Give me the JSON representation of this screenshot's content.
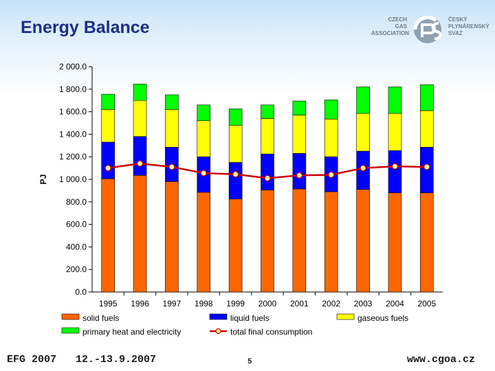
{
  "header": {
    "title": "Energy Balance"
  },
  "logo": {
    "left_text": [
      "CZECH",
      "GAS",
      "ASSOCIATION"
    ],
    "right_text": [
      "ČESKÝ",
      "PLYNÁRENSKÝ",
      "SVAZ"
    ],
    "icon": "cgoa-logo-mark"
  },
  "footer": {
    "event": "EFG 2007",
    "date": "12.-13.9.2007",
    "page": "5",
    "url": "www.cgoa.cz"
  },
  "colors": {
    "solid": "#ff6600",
    "liquid": "#0000ff",
    "gaseous": "#ffff00",
    "primary": "#00ff00",
    "line": "#cc0000",
    "marker_fill": "#ffff99"
  },
  "chart_data": {
    "type": "bar",
    "stacked": true,
    "categories": [
      "1995",
      "1996",
      "1997",
      "1998",
      "1999",
      "2000",
      "2001",
      "2002",
      "2003",
      "2004",
      "2005"
    ],
    "ylabel": "PJ",
    "xlabel": "",
    "ylim": [
      0,
      2000
    ],
    "yticks": [
      "0.0",
      "200.0",
      "400.0",
      "600.0",
      "800.0",
      "1 000.0",
      "1 200.0",
      "1 400.0",
      "1 600.0",
      "1 800.0",
      "2 000.0"
    ],
    "ytick_values": [
      0,
      200,
      400,
      600,
      800,
      1000,
      1200,
      1400,
      1600,
      1800,
      2000
    ],
    "grid": false,
    "legend_position": "bottom",
    "series": [
      {
        "name": "solid fuels",
        "kind": "bar",
        "values": [
          1005,
          1035,
          980,
          885,
          825,
          905,
          915,
          890,
          910,
          880,
          880
        ]
      },
      {
        "name": "liquid fuels",
        "kind": "bar",
        "values": [
          325,
          345,
          305,
          315,
          325,
          320,
          315,
          310,
          340,
          375,
          405
        ]
      },
      {
        "name": "gaseous fuels",
        "kind": "bar",
        "values": [
          290,
          320,
          335,
          320,
          330,
          315,
          340,
          335,
          335,
          330,
          325
        ]
      },
      {
        "name": "primary heat and electricity",
        "kind": "bar",
        "values": [
          135,
          145,
          130,
          140,
          145,
          120,
          125,
          170,
          235,
          235,
          230
        ]
      },
      {
        "name": "total final consumption",
        "kind": "line",
        "values": [
          1100,
          1140,
          1110,
          1055,
          1045,
          1010,
          1035,
          1040,
          1100,
          1115,
          1110
        ]
      }
    ]
  }
}
